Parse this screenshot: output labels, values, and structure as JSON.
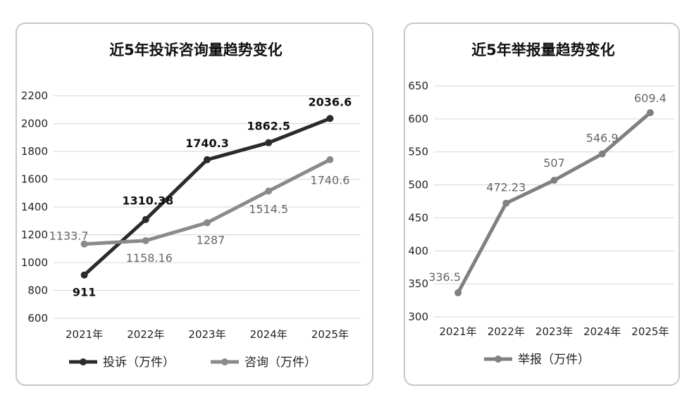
{
  "chart_data": [
    {
      "type": "line",
      "title": "近5年投诉咨询量趋势变化",
      "categories": [
        "2021年",
        "2022年",
        "2023年",
        "2024年",
        "2025年"
      ],
      "ylim": [
        600,
        2200
      ],
      "yticks": [
        600,
        800,
        1000,
        1200,
        1400,
        1600,
        1800,
        2000,
        2200
      ],
      "grid": true,
      "legend_position": "bottom",
      "series": [
        {
          "name": "投诉（万件）",
          "values": [
            911,
            1310.38,
            1740.3,
            1862.5,
            2036.6
          ],
          "labels": [
            "911",
            "1310.38",
            "1740.3",
            "1862.5",
            "2036.6"
          ],
          "color": "#2b2b2b",
          "label_color": "#111111"
        },
        {
          "name": "咨询（万件）",
          "values": [
            1133.7,
            1158.16,
            1287,
            1514.5,
            1740.6
          ],
          "labels": [
            "1133.7",
            "1158.16",
            "1287",
            "1514.5",
            "1740.6"
          ],
          "color": "#8a8a8a",
          "label_color": "#666666"
        }
      ]
    },
    {
      "type": "line",
      "title": "近5年举报量趋势变化",
      "categories": [
        "2021年",
        "2022年",
        "2023年",
        "2024年",
        "2025年"
      ],
      "ylim": [
        300,
        650
      ],
      "yticks": [
        300,
        350,
        400,
        450,
        500,
        550,
        600,
        650
      ],
      "grid": true,
      "legend_position": "bottom",
      "series": [
        {
          "name": "举报（万件）",
          "values": [
            336.5,
            472.23,
            507,
            546.9,
            609.4
          ],
          "labels": [
            "336.5",
            "472.23",
            "507",
            "546.9",
            "609.4"
          ],
          "color": "#808080",
          "label_color": "#666666"
        }
      ]
    }
  ]
}
